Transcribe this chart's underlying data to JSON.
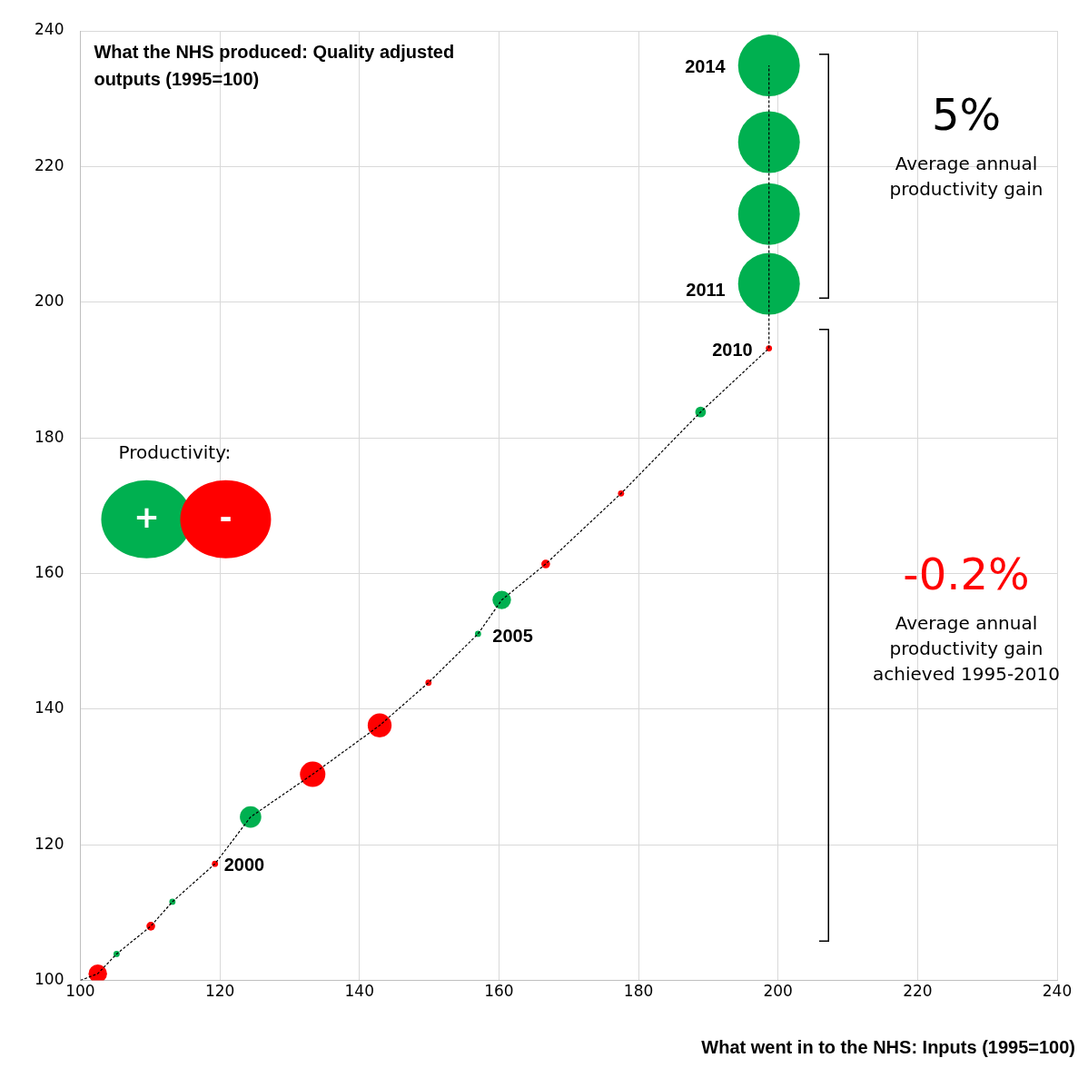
{
  "chart_data": {
    "type": "bubble",
    "ylabel": "What the NHS produced: Quality adjusted outputs (1995=100)",
    "xlabel": "What went in to the NHS: Inputs (1995=100)",
    "legend_title": "Productivity:",
    "legend": "left",
    "grid": true,
    "xlim": [
      100,
      240
    ],
    "xticks": [
      100,
      120,
      140,
      160,
      180,
      200,
      220,
      240
    ],
    "ylim": [
      100,
      240
    ],
    "yticks": [
      100,
      120,
      140,
      160,
      180,
      200,
      220,
      240
    ],
    "series": [
      {
        "type": "line",
        "color": "#000000",
        "line_style": "dashed",
        "x": [
          100,
          102.5,
          105.2,
          110.1,
          113.2,
          119.3,
          124.4,
          133.3,
          142.9,
          149.9,
          157,
          160.4,
          166.7,
          177.5,
          188.9,
          198.7,
          198.7,
          198.7,
          198.7,
          198.7
        ],
        "values": [
          100,
          101,
          103.9,
          108,
          111.6,
          117.2,
          124.1,
          130.4,
          137.6,
          143.9,
          151.1,
          156.1,
          161.4,
          171.8,
          183.8,
          193.2,
          202.7,
          213,
          223.6,
          234.9
        ]
      },
      {
        "name": "+",
        "color": "#00b050",
        "x": [
          105.2,
          113.2,
          124.4,
          157,
          160.4,
          188.9,
          198.7,
          198.7,
          198.7,
          198.7
        ],
        "values": [
          103.9,
          111.6,
          124.1,
          151.1,
          156.1,
          183.8,
          202.7,
          213,
          223.6,
          234.9
        ],
        "sizes": [
          0.01,
          0.01,
          0.12,
          0.01,
          0.09,
          0.03,
          1,
          1,
          1,
          1
        ]
      },
      {
        "name": "-",
        "color": "#ff0000",
        "x": [
          102.5,
          110.1,
          119.3,
          133.3,
          142.9,
          149.9,
          166.7,
          177.5,
          198.7
        ],
        "values": [
          101,
          108,
          117.2,
          130.4,
          137.6,
          143.9,
          161.4,
          171.8,
          193.2
        ],
        "sizes": [
          0.09,
          0.02,
          0.01,
          0.17,
          0.15,
          0.01,
          0.02,
          0.01,
          0.01
        ]
      }
    ],
    "annotations": [
      {
        "text": "2014",
        "x": 198.7,
        "y": 234.9
      },
      {
        "text": "2011",
        "x": 198.7,
        "y": 202.7
      },
      {
        "text": "2010",
        "x": 198.7,
        "y": 193.2
      },
      {
        "text": "2005",
        "x": 157,
        "y": 151.1
      },
      {
        "text": "2000",
        "x": 119.3,
        "y": 117.2
      },
      "5%",
      "Average annual productivity gain",
      "-0.2%",
      "Average annual productivity gain achieved 1995-2010"
    ]
  }
}
